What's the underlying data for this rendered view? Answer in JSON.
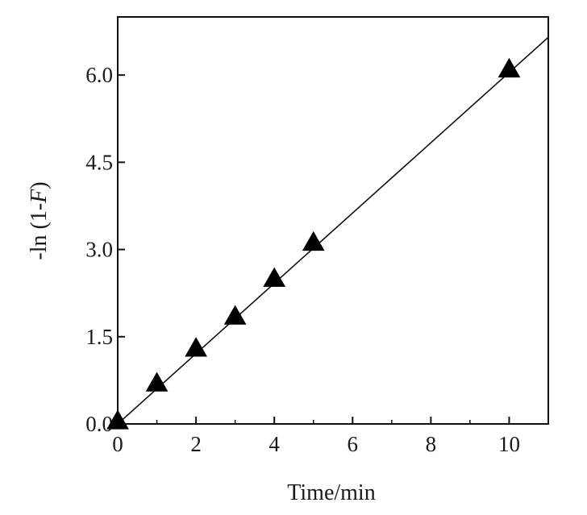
{
  "chart_data": {
    "type": "scatter",
    "title": "",
    "xlabel": "Time/min",
    "ylabel_prefix": "-ln (1-",
    "ylabel_italic": "F",
    "ylabel_suffix": ")",
    "xlim": [
      0,
      11
    ],
    "ylim": [
      0,
      7
    ],
    "x_ticks": [
      0,
      2,
      4,
      6,
      8,
      10
    ],
    "x_tick_labels": [
      "0",
      "2",
      "4",
      "6",
      "8",
      "10"
    ],
    "y_ticks": [
      0,
      1.5,
      3.0,
      4.5,
      6.0
    ],
    "y_tick_labels": [
      "0.0",
      "1.5",
      "3.0",
      "4.5",
      "6.0"
    ],
    "grid": false,
    "legend": "none",
    "marker": "triangle",
    "marker_color": "#000000",
    "series": [
      {
        "x": [
          0,
          1,
          2,
          3,
          4,
          5,
          10
        ],
        "y": [
          0.05,
          0.7,
          1.3,
          1.85,
          2.5,
          3.12,
          6.1
        ]
      }
    ],
    "fit_line": {
      "x": [
        0,
        11
      ],
      "y": [
        0,
        6.65
      ]
    }
  }
}
